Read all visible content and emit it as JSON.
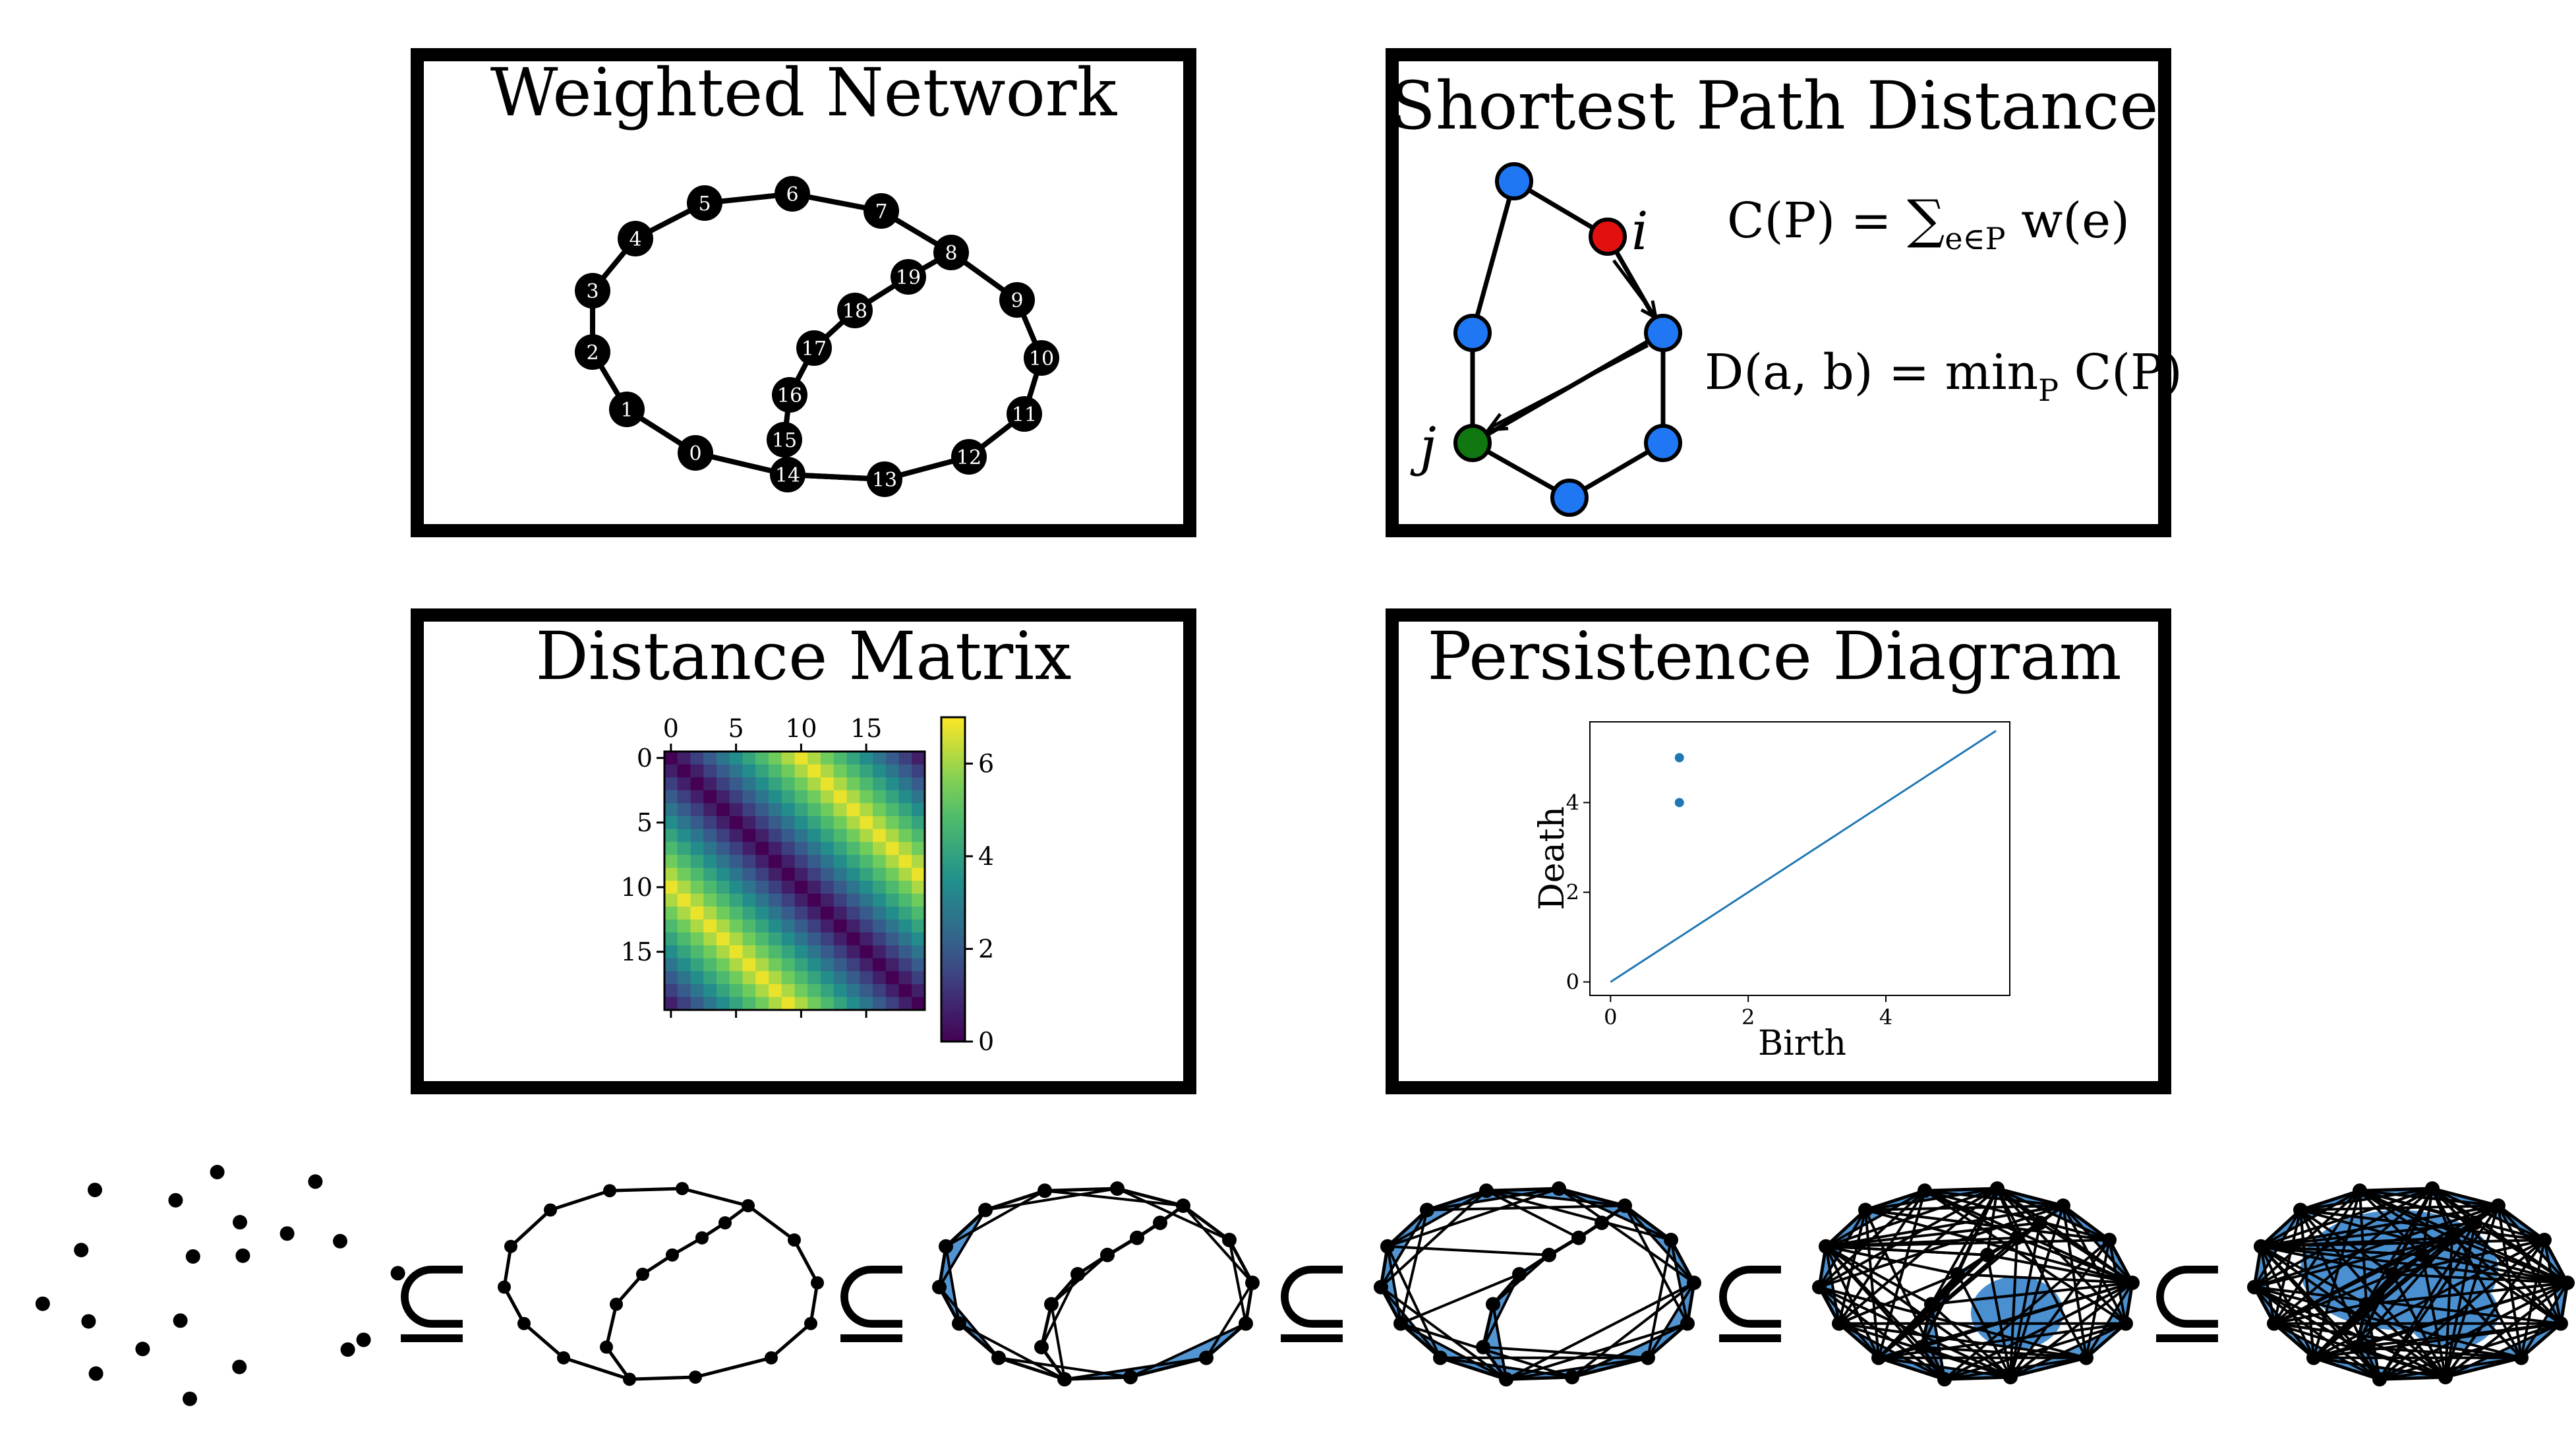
{
  "panels": {
    "weighted_network": {
      "title": "Weighted Network"
    },
    "shortest_path": {
      "title": "Shortest Path Distance",
      "node_i": "i",
      "node_j": "j",
      "formula_cost": "C(P) = ∑e∈P w(e)",
      "formula_cost_lhs": "C(P) = ",
      "formula_cost_sum": "∑",
      "formula_cost_sub": "e∈P",
      "formula_cost_rhs": " w(e)",
      "formula_distance": "D(a, b) = minP C(P)",
      "formula_distance_lhs": "D(a, b) = min",
      "formula_distance_sub": "P",
      "formula_distance_rhs": " C(P)"
    },
    "distance_matrix": {
      "title": "Distance Matrix",
      "top_ticks": [
        "0",
        "5",
        "10",
        "15"
      ],
      "left_ticks": [
        "0",
        "5",
        "10",
        "15"
      ],
      "colorbar_ticks": [
        "0",
        "2",
        "4",
        "6"
      ]
    },
    "persistence_diagram": {
      "title": "Persistence Diagram",
      "xlabel": "Birth",
      "ylabel": "Death",
      "xticks": [
        "0",
        "2",
        "4"
      ],
      "yticks": [
        "0",
        "2",
        "4"
      ]
    }
  },
  "network_labels": [
    "0",
    "1",
    "2",
    "3",
    "4",
    "5",
    "6",
    "7",
    "8",
    "9",
    "10",
    "11",
    "12",
    "13",
    "14",
    "15",
    "16",
    "17",
    "18",
    "19"
  ],
  "filtration": {
    "subset_symbol": "⊆",
    "stages": 6
  },
  "colors": {
    "node_default": "#1f77f4",
    "node_i": "#e31010",
    "node_j": "#117711",
    "filtration_fill": "#4a8fd0",
    "diagram_point": "#1f77b4"
  },
  "chart_data": [
    {
      "type": "heatmap",
      "title": "Distance Matrix",
      "xlabel": "",
      "ylabel": "",
      "size": 20,
      "colormap": "viridis",
      "vmin": 0,
      "vmax": 7,
      "colorbar_ticks": [
        0,
        2,
        4,
        6
      ],
      "xticks": [
        0,
        5,
        10,
        15
      ],
      "yticks": [
        0,
        5,
        10,
        15
      ]
    },
    {
      "type": "scatter",
      "title": "Persistence Diagram",
      "xlabel": "Birth",
      "ylabel": "Death",
      "xlim": [
        -0.3,
        5.8
      ],
      "ylim": [
        -0.3,
        5.8
      ],
      "points": [
        {
          "x": 1,
          "y": 5
        },
        {
          "x": 1,
          "y": 4
        }
      ],
      "diagonal": [
        [
          0,
          0
        ],
        [
          5.6,
          5.6
        ]
      ],
      "xticks": [
        0,
        2,
        4
      ],
      "yticks": [
        0,
        2,
        4
      ]
    }
  ]
}
